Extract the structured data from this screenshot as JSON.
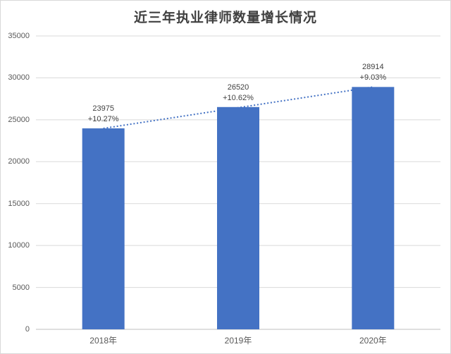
{
  "chart_data": {
    "type": "bar",
    "title": "近三年执业律师数量增长情况",
    "categories": [
      "2018年",
      "2019年",
      "2020年"
    ],
    "values": [
      23975,
      26520,
      28914
    ],
    "growth_labels": [
      "+10.27%",
      "+10.62%",
      "+9.03%"
    ],
    "ylim": [
      0,
      35000
    ],
    "ytick_step": 5000,
    "ytick_labels": [
      "0",
      "5000",
      "10000",
      "15000",
      "20000",
      "25000",
      "30000",
      "35000"
    ],
    "xlabel": "",
    "ylabel": "",
    "grid": true,
    "legend": "none",
    "trendline": {
      "type": "linear",
      "style": "dotted",
      "from_value": 23975,
      "to_value": 28914
    }
  },
  "colors": {
    "bar": "#4472C4",
    "trendline": "#4472C4",
    "gridline": "#D9D9D9",
    "axis_line": "#BFBFBF",
    "frame_border": "#D9D9D9",
    "title_text": "#404040",
    "data_label_text": "#404040",
    "tick_label_text": "#595959",
    "background": "#FFFFFF"
  }
}
